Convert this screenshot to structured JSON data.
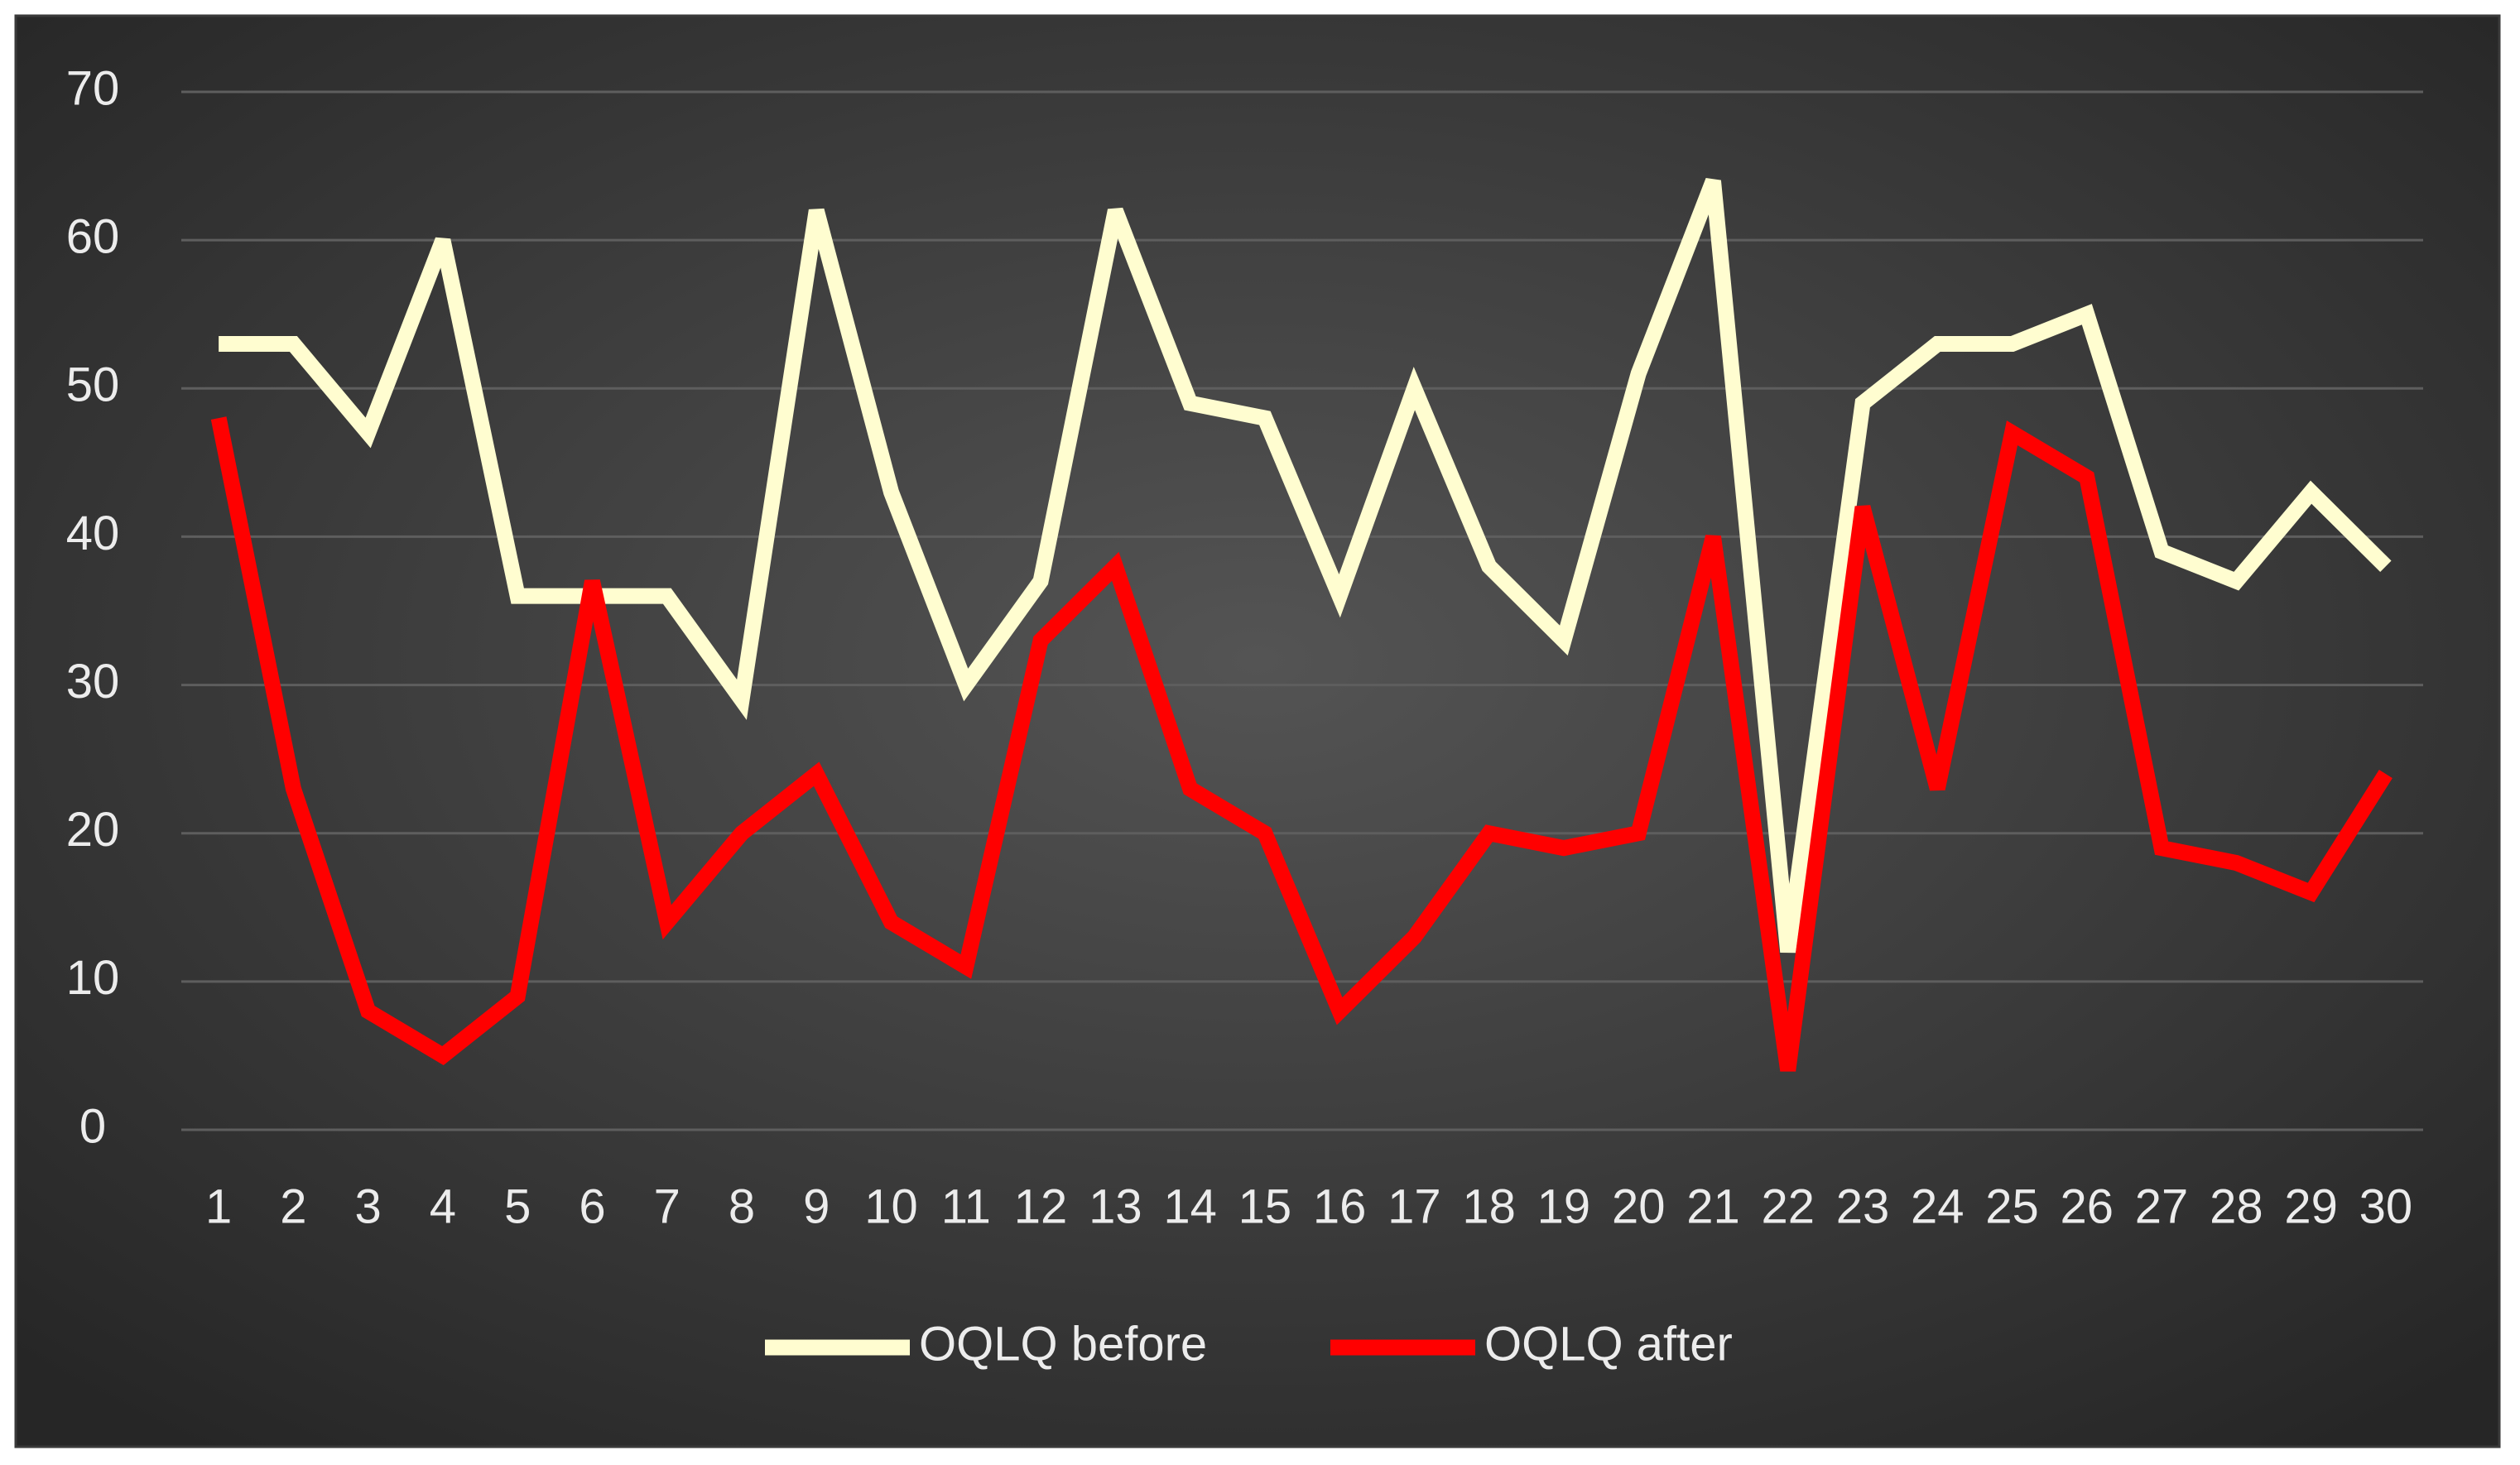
{
  "chart_data": {
    "type": "line",
    "categories": [
      1,
      2,
      3,
      4,
      5,
      6,
      7,
      8,
      9,
      10,
      11,
      12,
      13,
      14,
      15,
      16,
      17,
      18,
      19,
      20,
      21,
      22,
      23,
      24,
      25,
      26,
      27,
      28,
      29,
      30
    ],
    "series": [
      {
        "name": "OQLQ before",
        "color": "#fffdd0",
        "values": [
          53,
          53,
          47,
          60,
          36,
          36,
          36,
          29,
          62,
          43,
          30,
          37,
          62,
          49,
          48,
          36,
          50,
          38,
          33,
          51,
          64,
          12,
          49,
          53,
          53,
          55,
          39,
          37,
          43,
          38
        ]
      },
      {
        "name": "OQLQ after",
        "color": "#ff0000",
        "values": [
          48,
          23,
          8,
          5,
          9,
          37,
          14,
          20,
          24,
          14,
          11,
          33,
          38,
          23,
          20,
          8,
          13,
          20,
          19,
          20,
          40,
          4,
          42,
          23,
          47,
          44,
          19,
          18,
          16,
          24
        ]
      }
    ],
    "ylim": [
      0,
      70
    ],
    "yticks": [
      0,
      10,
      20,
      30,
      40,
      50,
      60,
      70
    ],
    "grid": true,
    "legend": "bottom"
  }
}
